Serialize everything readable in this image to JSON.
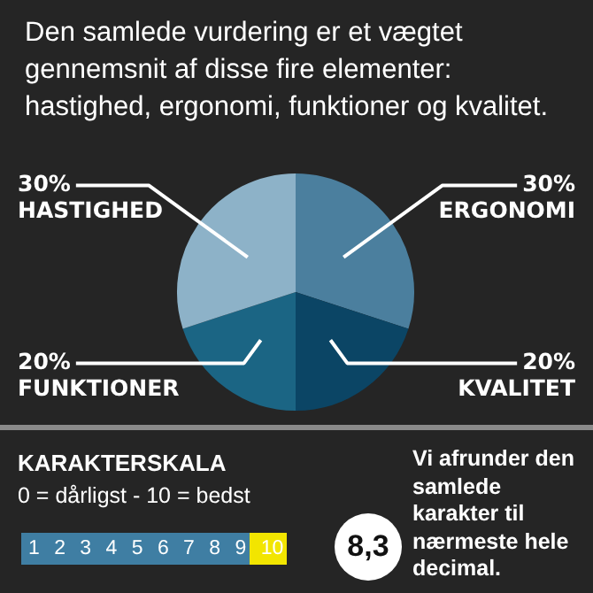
{
  "chart_data": [
    {
      "type": "pie",
      "title": "Den samlede vurdering er et vægtet gennemsnit af disse fire elementer: hastighed, ergonomi, funktioner og kvalitet.",
      "categories": [
        "ERGONOMI",
        "KVALITET",
        "FUNKTIONER",
        "HASTIGHED"
      ],
      "values": [
        30,
        20,
        20,
        30
      ],
      "value_labels": [
        "30%",
        "20%",
        "20%",
        "30%"
      ],
      "colors": [
        "#4b7f9e",
        "#0b4565",
        "#1b6584",
        "#8db2c8"
      ],
      "legend": false
    },
    {
      "type": "other",
      "title": "KARAKTERSKALA",
      "subtitle": "0 = dårligst - 10 = bedst",
      "annotations": [
        "8,3",
        "Vi afrunder den samlede karakter til nærmeste hele decimal.",
        "1 2 3 4 5 6 7 8 9 10"
      ]
    }
  ]
}
